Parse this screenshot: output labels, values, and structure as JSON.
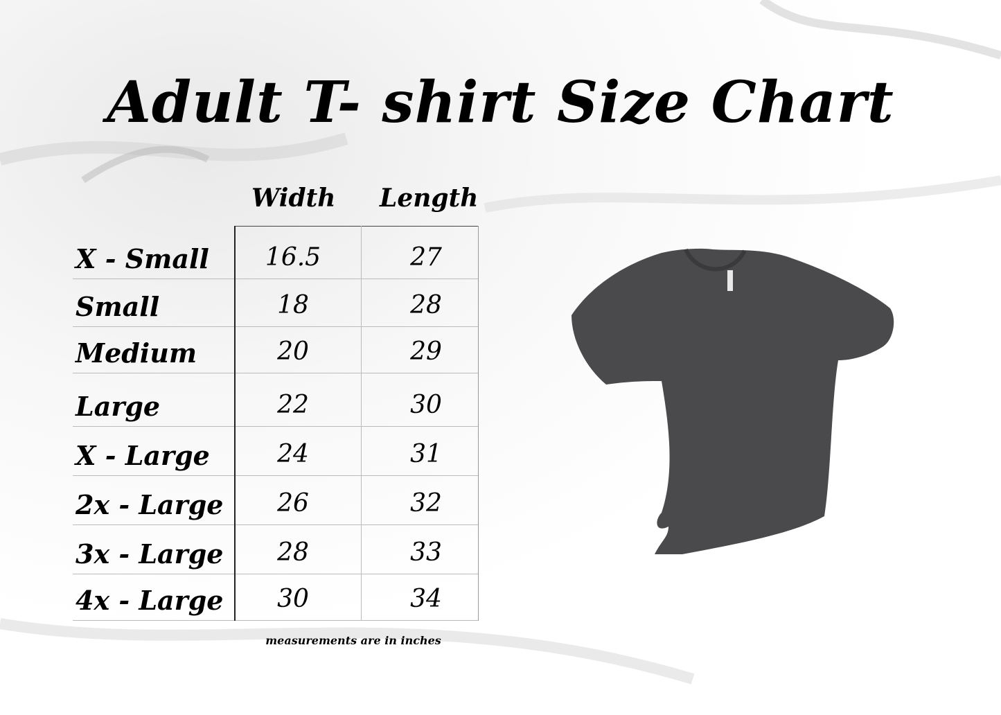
{
  "title": "Adult T- shirt Size Chart",
  "columns": [
    "Width",
    "Length"
  ],
  "rows": [
    {
      "size": "X - Small",
      "width": "16.5",
      "length": "27"
    },
    {
      "size": "Small",
      "width": "18",
      "length": "28"
    },
    {
      "size": "Medium",
      "width": "20",
      "length": "29"
    },
    {
      "size": "Large",
      "width": "22",
      "length": "30"
    },
    {
      "size": "X - Large",
      "width": "24",
      "length": "31"
    },
    {
      "size": "2x - Large",
      "width": "26",
      "length": "32"
    },
    {
      "size": "3x - Large",
      "width": "28",
      "length": "33"
    },
    {
      "size": "4x - Large",
      "width": "30",
      "length": "34"
    }
  ],
  "note": "measurements are in inches",
  "colors": {
    "shirt": "#4a4a4c",
    "text": "#000000"
  }
}
